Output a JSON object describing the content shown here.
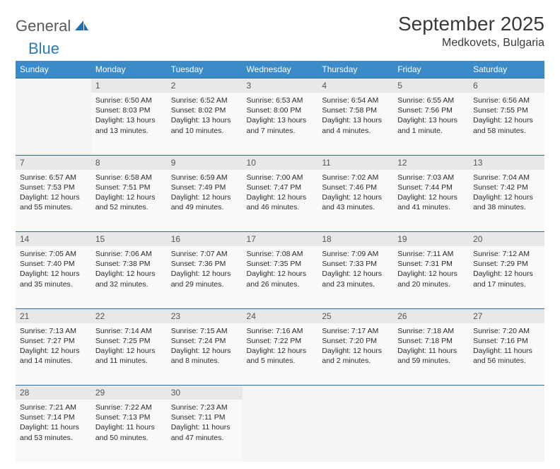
{
  "logo": {
    "word1": "General",
    "word2": "Blue"
  },
  "title": "September 2025",
  "location": "Medkovets, Bulgaria",
  "colors": {
    "header_bg": "#3b8bc8",
    "header_text": "#ffffff",
    "daynum_bg": "#e8e8e8",
    "cell_bg": "#f9f9f9",
    "empty_bg": "#f4f4f4",
    "rule": "#2f6fa3",
    "logo_gray": "#5a5a5a",
    "logo_blue": "#2a7ab8"
  },
  "weekdays": [
    "Sunday",
    "Monday",
    "Tuesday",
    "Wednesday",
    "Thursday",
    "Friday",
    "Saturday"
  ],
  "weeks": [
    [
      null,
      {
        "n": "1",
        "sr": "6:50 AM",
        "ss": "8:03 PM",
        "dl": "13 hours and 13 minutes."
      },
      {
        "n": "2",
        "sr": "6:52 AM",
        "ss": "8:02 PM",
        "dl": "13 hours and 10 minutes."
      },
      {
        "n": "3",
        "sr": "6:53 AM",
        "ss": "8:00 PM",
        "dl": "13 hours and 7 minutes."
      },
      {
        "n": "4",
        "sr": "6:54 AM",
        "ss": "7:58 PM",
        "dl": "13 hours and 4 minutes."
      },
      {
        "n": "5",
        "sr": "6:55 AM",
        "ss": "7:56 PM",
        "dl": "13 hours and 1 minute."
      },
      {
        "n": "6",
        "sr": "6:56 AM",
        "ss": "7:55 PM",
        "dl": "12 hours and 58 minutes."
      }
    ],
    [
      {
        "n": "7",
        "sr": "6:57 AM",
        "ss": "7:53 PM",
        "dl": "12 hours and 55 minutes."
      },
      {
        "n": "8",
        "sr": "6:58 AM",
        "ss": "7:51 PM",
        "dl": "12 hours and 52 minutes."
      },
      {
        "n": "9",
        "sr": "6:59 AM",
        "ss": "7:49 PM",
        "dl": "12 hours and 49 minutes."
      },
      {
        "n": "10",
        "sr": "7:00 AM",
        "ss": "7:47 PM",
        "dl": "12 hours and 46 minutes."
      },
      {
        "n": "11",
        "sr": "7:02 AM",
        "ss": "7:46 PM",
        "dl": "12 hours and 43 minutes."
      },
      {
        "n": "12",
        "sr": "7:03 AM",
        "ss": "7:44 PM",
        "dl": "12 hours and 41 minutes."
      },
      {
        "n": "13",
        "sr": "7:04 AM",
        "ss": "7:42 PM",
        "dl": "12 hours and 38 minutes."
      }
    ],
    [
      {
        "n": "14",
        "sr": "7:05 AM",
        "ss": "7:40 PM",
        "dl": "12 hours and 35 minutes."
      },
      {
        "n": "15",
        "sr": "7:06 AM",
        "ss": "7:38 PM",
        "dl": "12 hours and 32 minutes."
      },
      {
        "n": "16",
        "sr": "7:07 AM",
        "ss": "7:36 PM",
        "dl": "12 hours and 29 minutes."
      },
      {
        "n": "17",
        "sr": "7:08 AM",
        "ss": "7:35 PM",
        "dl": "12 hours and 26 minutes."
      },
      {
        "n": "18",
        "sr": "7:09 AM",
        "ss": "7:33 PM",
        "dl": "12 hours and 23 minutes."
      },
      {
        "n": "19",
        "sr": "7:11 AM",
        "ss": "7:31 PM",
        "dl": "12 hours and 20 minutes."
      },
      {
        "n": "20",
        "sr": "7:12 AM",
        "ss": "7:29 PM",
        "dl": "12 hours and 17 minutes."
      }
    ],
    [
      {
        "n": "21",
        "sr": "7:13 AM",
        "ss": "7:27 PM",
        "dl": "12 hours and 14 minutes."
      },
      {
        "n": "22",
        "sr": "7:14 AM",
        "ss": "7:25 PM",
        "dl": "12 hours and 11 minutes."
      },
      {
        "n": "23",
        "sr": "7:15 AM",
        "ss": "7:24 PM",
        "dl": "12 hours and 8 minutes."
      },
      {
        "n": "24",
        "sr": "7:16 AM",
        "ss": "7:22 PM",
        "dl": "12 hours and 5 minutes."
      },
      {
        "n": "25",
        "sr": "7:17 AM",
        "ss": "7:20 PM",
        "dl": "12 hours and 2 minutes."
      },
      {
        "n": "26",
        "sr": "7:18 AM",
        "ss": "7:18 PM",
        "dl": "11 hours and 59 minutes."
      },
      {
        "n": "27",
        "sr": "7:20 AM",
        "ss": "7:16 PM",
        "dl": "11 hours and 56 minutes."
      }
    ],
    [
      {
        "n": "28",
        "sr": "7:21 AM",
        "ss": "7:14 PM",
        "dl": "11 hours and 53 minutes."
      },
      {
        "n": "29",
        "sr": "7:22 AM",
        "ss": "7:13 PM",
        "dl": "11 hours and 50 minutes."
      },
      {
        "n": "30",
        "sr": "7:23 AM",
        "ss": "7:11 PM",
        "dl": "11 hours and 47 minutes."
      },
      null,
      null,
      null,
      null
    ]
  ],
  "labels": {
    "sunrise": "Sunrise:",
    "sunset": "Sunset:",
    "daylight": "Daylight:"
  }
}
